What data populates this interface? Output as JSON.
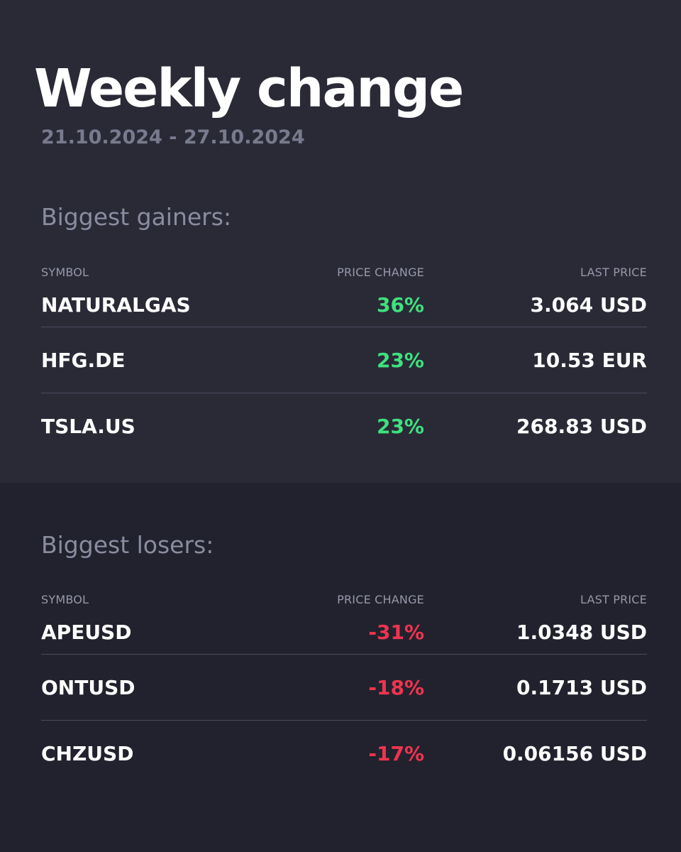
{
  "header": {
    "title": "Weekly change",
    "date_range": "21.10.2024 - 27.10.2024"
  },
  "columns": {
    "symbol": "SYMBOL",
    "price_change": "PRICE CHANGE",
    "last_price": "LAST PRICE"
  },
  "gainers": {
    "title": "Biggest gainers:",
    "rows": [
      {
        "symbol": "NATURALGAS",
        "change": "36%",
        "price": "3.064 USD"
      },
      {
        "symbol": "HFG.DE",
        "change": "23%",
        "price": "10.53 EUR"
      },
      {
        "symbol": "TSLA.US",
        "change": "23%",
        "price": "268.83 USD"
      }
    ]
  },
  "losers": {
    "title": "Biggest losers:",
    "rows": [
      {
        "symbol": "APEUSD",
        "change": "-31%",
        "price": "1.0348 USD"
      },
      {
        "symbol": "ONTUSD",
        "change": "-18%",
        "price": "0.1713 USD"
      },
      {
        "symbol": "CHZUSD",
        "change": "-17%",
        "price": "0.06156 USD"
      }
    ]
  },
  "colors": {
    "gain": "#3ee27e",
    "loss": "#f0344f",
    "top_background": "#2a2a37",
    "bottom_background": "#22222e"
  }
}
